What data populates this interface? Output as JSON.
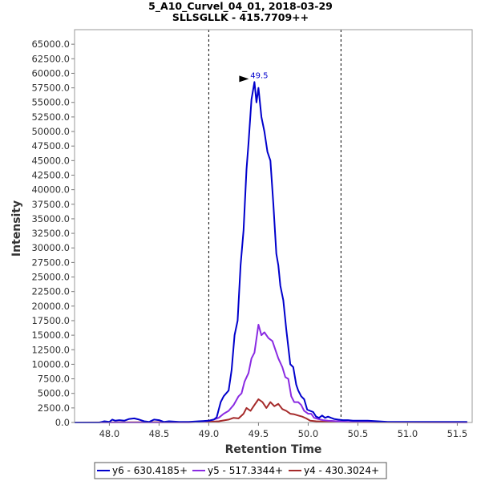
{
  "chart_data": {
    "type": "line",
    "title": "5_A10_Curvel_04_01, 2018-03-29",
    "subtitle": "SLLSGLLK - 415.7709++",
    "xlabel": "Retention Time",
    "ylabel": "Intensity",
    "xlim": [
      47.65,
      51.65
    ],
    "ylim": [
      0,
      67500
    ],
    "x_ticks": [
      "48.0",
      "48.5",
      "49.0",
      "49.5",
      "50.0",
      "50.5",
      "51.0",
      "51.5"
    ],
    "y_ticks": [
      "0.0",
      "2500.0",
      "5000.0",
      "7500.0",
      "10000.0",
      "12500.0",
      "15000.0",
      "17500.0",
      "20000.0",
      "22500.0",
      "25000.0",
      "27500.0",
      "30000.0",
      "32500.0",
      "35000.0",
      "37500.0",
      "40000.0",
      "42500.0",
      "45000.0",
      "47500.0",
      "50000.0",
      "52500.0",
      "55000.0",
      "57500.0",
      "60000.0",
      "62500.0",
      "65000.0"
    ],
    "integration_bounds": [
      49.0,
      50.33
    ],
    "peak_annotation": {
      "x": 49.5,
      "y": 58500,
      "label": "49.5"
    },
    "grid": false,
    "legend_position": "bottom",
    "series": [
      {
        "name": "y6 - 630.4185+",
        "color": "#0000cc",
        "x": [
          47.65,
          47.9,
          47.95,
          48.0,
          48.03,
          48.06,
          48.1,
          48.15,
          48.2,
          48.25,
          48.3,
          48.35,
          48.4,
          48.45,
          48.5,
          48.55,
          48.6,
          48.7,
          48.8,
          48.9,
          49.0,
          49.05,
          49.08,
          49.12,
          49.15,
          49.2,
          49.23,
          49.26,
          49.29,
          49.32,
          49.35,
          49.38,
          49.4,
          49.43,
          49.46,
          49.48,
          49.5,
          49.53,
          49.56,
          49.59,
          49.62,
          49.65,
          49.68,
          49.7,
          49.72,
          49.75,
          49.78,
          49.8,
          49.82,
          49.85,
          49.88,
          49.9,
          49.93,
          49.96,
          49.99,
          50.02,
          50.05,
          50.08,
          50.11,
          50.14,
          50.17,
          50.2,
          50.23,
          50.26,
          50.3,
          50.35,
          50.4,
          50.45,
          50.5,
          50.6,
          50.7,
          50.8,
          50.9,
          51.0,
          51.2,
          51.4,
          51.6
        ],
        "y": [
          0,
          0,
          200,
          100,
          500,
          300,
          400,
          300,
          600,
          700,
          500,
          200,
          100,
          500,
          400,
          100,
          200,
          100,
          100,
          200,
          300,
          500,
          900,
          3500,
          4500,
          5500,
          9000,
          15000,
          17500,
          27000,
          33000,
          43500,
          48000,
          55500,
          58500,
          55000,
          57500,
          52500,
          50000,
          46500,
          45000,
          37500,
          29000,
          27000,
          23500,
          21000,
          16000,
          13000,
          10000,
          9500,
          6500,
          5500,
          4500,
          4000,
          2200,
          2000,
          1800,
          1000,
          800,
          1200,
          800,
          1000,
          800,
          600,
          500,
          400,
          400,
          300,
          300,
          300,
          200,
          100,
          100,
          100,
          100,
          100,
          100
        ]
      },
      {
        "name": "y5 - 517.3344+",
        "color": "#8a2be2",
        "x": [
          47.65,
          48.8,
          48.9,
          49.0,
          49.05,
          49.1,
          49.15,
          49.2,
          49.25,
          49.3,
          49.33,
          49.36,
          49.4,
          49.43,
          49.46,
          49.5,
          49.53,
          49.56,
          49.6,
          49.64,
          49.67,
          49.7,
          49.74,
          49.77,
          49.8,
          49.83,
          49.86,
          49.9,
          49.93,
          49.96,
          50.0,
          50.03,
          50.06,
          50.1,
          50.15,
          50.2,
          50.3,
          50.4,
          51.6
        ],
        "y": [
          0,
          0,
          100,
          300,
          500,
          800,
          1500,
          2000,
          3000,
          4500,
          5000,
          7000,
          8500,
          11000,
          12000,
          16800,
          15000,
          15500,
          14500,
          14000,
          12500,
          11000,
          9500,
          7800,
          7500,
          4500,
          3500,
          3500,
          3000,
          2000,
          1500,
          1500,
          800,
          600,
          400,
          300,
          200,
          100,
          0
        ]
      },
      {
        "name": "y4 - 430.3024+",
        "color": "#a52a2a",
        "x": [
          47.65,
          49.0,
          49.1,
          49.2,
          49.25,
          49.3,
          49.35,
          49.38,
          49.42,
          49.46,
          49.5,
          49.54,
          49.58,
          49.62,
          49.66,
          49.7,
          49.74,
          49.78,
          49.82,
          49.86,
          49.9,
          49.94,
          49.98,
          50.02,
          50.08,
          50.15,
          50.25,
          50.4,
          51.6
        ],
        "y": [
          0,
          100,
          200,
          500,
          800,
          700,
          1500,
          2500,
          2000,
          3000,
          4000,
          3500,
          2500,
          3500,
          2800,
          3200,
          2300,
          2000,
          1500,
          1400,
          1200,
          1000,
          700,
          300,
          200,
          150,
          100,
          50,
          0
        ]
      }
    ]
  }
}
